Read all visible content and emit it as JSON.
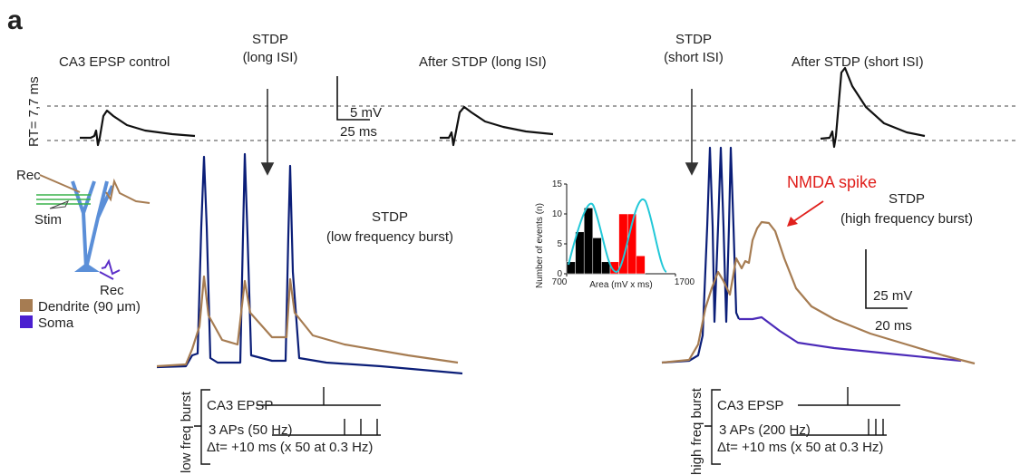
{
  "panel_label": "a",
  "headers": {
    "control": "CA3 EPSP control",
    "stdp_long": [
      "STDP",
      "(long ISI)"
    ],
    "after_long": "After  STDP (long ISI)",
    "stdp_short": [
      "STDP",
      "(short ISI)"
    ],
    "after_short": "After STDP (short ISI)"
  },
  "rt_label": "RT= 7,7 ms",
  "scale_top": {
    "v": "5 mV",
    "t": "25 ms"
  },
  "scale_right": {
    "v": "25 mV",
    "t": "20 ms"
  },
  "schematic": {
    "rec_top": "Rec",
    "stim": "Stim",
    "rec_bottom": "Rec"
  },
  "legend": [
    "Dendrite (90 μm)",
    "Soma"
  ],
  "low_burst": [
    "STDP",
    "(low frequency burst)"
  ],
  "high_burst": [
    "STDP",
    "(high frequency burst)"
  ],
  "nmda": "NMDA spike",
  "protocol_low": {
    "side": "low freq burst",
    "epsp": "CA3 EPSP",
    "aps": "3 APs (50 Hz)",
    "dt": "Δt= +10 ms (x 50 at 0.3 Hz)"
  },
  "protocol_high": {
    "side": "high freq burst",
    "epsp": "CA3 EPSP",
    "aps": "3 APs (200 Hz)",
    "dt": "Δt= +10 ms (x 50 at 0.3 Hz)"
  },
  "inset": {
    "type": "histogram",
    "ylabel": "Number of events (n)",
    "xlabel": "Area (mV x ms)",
    "xlim": [
      700,
      1700
    ],
    "ylim": [
      0,
      15
    ],
    "xticks": [
      700,
      1700
    ],
    "yticks": [
      0,
      5,
      10,
      15
    ],
    "series": [
      {
        "color": "#000000",
        "bins": [
          700,
          780,
          860,
          940,
          1020,
          1100
        ],
        "values": [
          2,
          7,
          11,
          6,
          2
        ]
      },
      {
        "color": "#ff0000",
        "bins": [
          1100,
          1180,
          1260,
          1340,
          1420
        ],
        "values": [
          2,
          10,
          10,
          3
        ]
      }
    ]
  }
}
